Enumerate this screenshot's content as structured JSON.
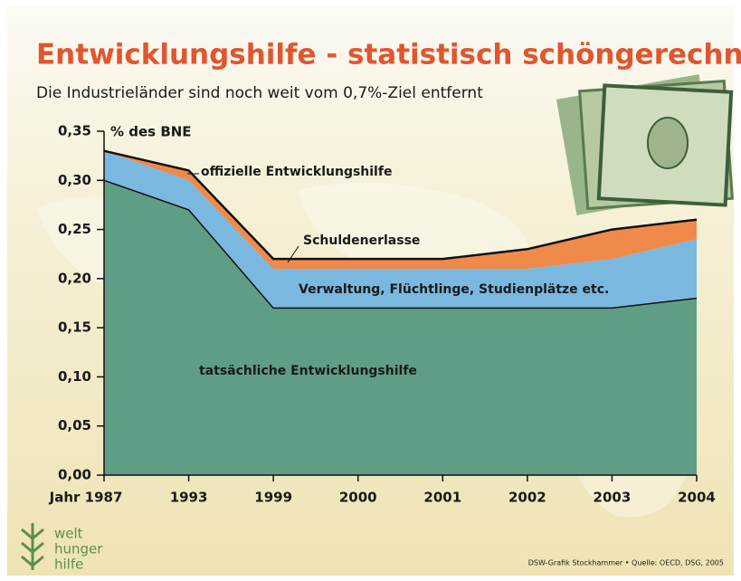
{
  "chart_data": {
    "type": "stacked_area",
    "title": "Entwicklungshilfe - statistisch schöngerechnet",
    "subtitle": "Die Industrieländer sind noch weit vom 0,7%-Ziel entfernt",
    "y_label": "% des BNE",
    "categories": [
      "Jahr 1987",
      "1993",
      "1999",
      "2000",
      "2001",
      "2002",
      "2003",
      "2004"
    ],
    "series": [
      {
        "name": "tatsächliche Entwicklungshilfe",
        "color": "#5f9e84",
        "values": [
          0.3,
          0.27,
          0.17,
          0.17,
          0.17,
          0.17,
          0.17,
          0.18
        ]
      },
      {
        "name": "Verwaltung, Flüchtlinge, Studienplätze etc.",
        "color": "#7ab8e0",
        "values": [
          0.03,
          0.03,
          0.04,
          0.04,
          0.04,
          0.04,
          0.05,
          0.06
        ]
      },
      {
        "name": "Schuldenerlasse",
        "color": "#f08a4b",
        "values": [
          0.0,
          0.01,
          0.01,
          0.01,
          0.01,
          0.02,
          0.03,
          0.02
        ]
      }
    ],
    "total_label": "offizielle Entwicklungshilfe",
    "ylim": [
      0,
      0.35
    ],
    "yticks": [
      {
        "value": 0,
        "label": "0,00"
      },
      {
        "value": 0.05,
        "label": "0,05"
      },
      {
        "value": 0.1,
        "label": "0,10"
      },
      {
        "value": 0.15,
        "label": "0,15"
      },
      {
        "value": 0.2,
        "label": "0,20"
      },
      {
        "value": 0.25,
        "label": "0,25"
      },
      {
        "value": 0.3,
        "label": "0,30"
      },
      {
        "value": 0.35,
        "label": "0,35"
      }
    ],
    "logo": [
      "welt",
      "hunger",
      "hilfe"
    ],
    "source": "DSW-Grafik Stockhammer • Quelle: OECD, DSG, 2005"
  }
}
